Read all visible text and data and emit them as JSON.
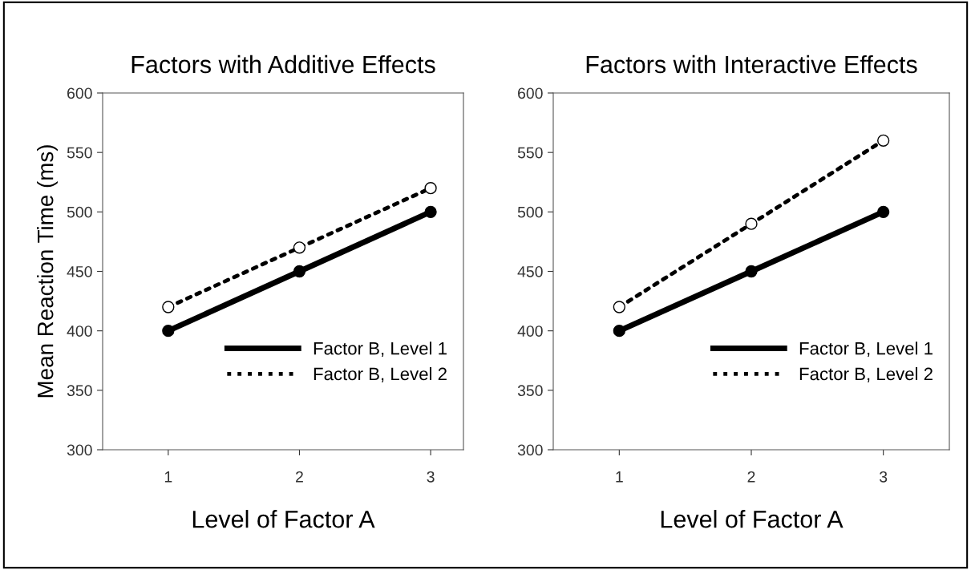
{
  "chart_data": [
    {
      "type": "line",
      "title": "Factors with Additive Effects",
      "xlabel": "Level of Factor A",
      "ylabel": "Mean Reaction Time (ms)",
      "x": [
        1,
        2,
        3
      ],
      "xlim": [
        0.5,
        3.25
      ],
      "xticks": [
        1,
        2,
        3
      ],
      "ylim": [
        300,
        600
      ],
      "yticks": [
        300,
        350,
        400,
        450,
        500,
        550,
        600
      ],
      "grid": false,
      "legend": "bottom right",
      "series": [
        {
          "name": "Factor B, Level 1",
          "color": "#000000",
          "values": [
            400,
            450,
            500
          ],
          "marker": "circle",
          "line_style": "solid"
        },
        {
          "name": "Factor B, Level 2",
          "color": "#000000",
          "values": [
            420,
            470,
            520
          ],
          "marker": "circle",
          "line_style": "dotted"
        }
      ]
    },
    {
      "type": "line",
      "title": "Factors with Interactive Effects",
      "xlabel": "Level of Factor A",
      "x": [
        1,
        2,
        3
      ],
      "xlim": [
        0.5,
        3.5
      ],
      "xticks": [
        1,
        2,
        3
      ],
      "ylim": [
        300,
        600
      ],
      "yticks": [
        300,
        350,
        400,
        450,
        500,
        550,
        600
      ],
      "grid": false,
      "legend": "bottom right",
      "series": [
        {
          "name": "Factor B, Level 1",
          "color": "#000000",
          "values": [
            400,
            450,
            500
          ],
          "marker": "circle",
          "line_style": "solid"
        },
        {
          "name": "Factor B, Level 2",
          "color": "#000000",
          "values": [
            420,
            490,
            560
          ],
          "marker": "circle",
          "line_style": "dotted"
        }
      ]
    }
  ]
}
